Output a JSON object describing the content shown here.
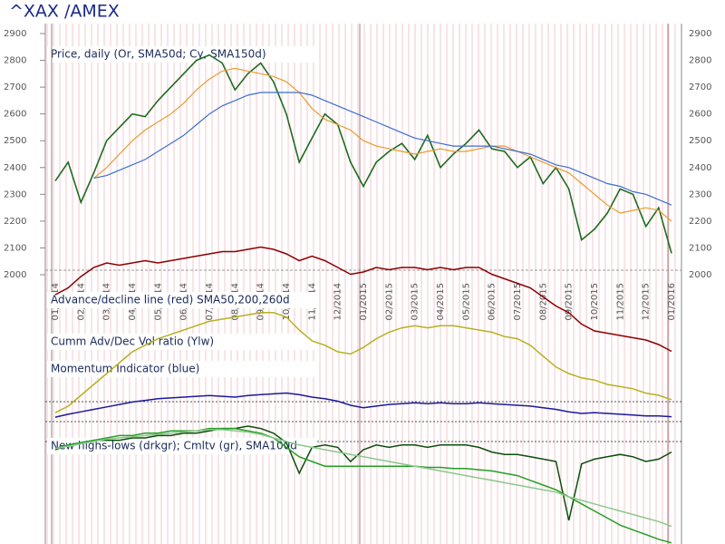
{
  "chart_data": {
    "type": "line",
    "title": "^XAX /AMEX",
    "price_label": "Price, daily (Or, SMA50d; Cy, SMA150d)",
    "categories": [
      "01/2014",
      null,
      "02/2014",
      null,
      "03/2014",
      null,
      "04/2014",
      null,
      "05/2014",
      null,
      "06/2014",
      null,
      "07/2014",
      null,
      "08/2014",
      null,
      "09/2014",
      null,
      "10/2014",
      null,
      "11/2014",
      null,
      "12/2014",
      null,
      "01/2015",
      null,
      "02/2015",
      null,
      "03/2015",
      null,
      "04/2015",
      null,
      "05/2015",
      null,
      "06/2015",
      null,
      "07/2015",
      null,
      "08/2015",
      null,
      "09/2015",
      null,
      "10/2015",
      null,
      "11/2015",
      null,
      "12/2015",
      null,
      "01/2016"
    ],
    "ylim": [
      2000,
      2900
    ],
    "yticks": [
      2000,
      2100,
      2200,
      2300,
      2400,
      2500,
      2600,
      2700,
      2800,
      2900
    ],
    "series": [
      {
        "color": "#1f6b1f",
        "values": [
          2350,
          2420,
          2270,
          2380,
          2500,
          2550,
          2600,
          2590,
          2650,
          2700,
          2750,
          2800,
          2820,
          2790,
          2690,
          2750,
          2790,
          2720,
          2600,
          2420,
          2510,
          2600,
          2560,
          2420,
          2330,
          2420,
          2460,
          2490,
          2430,
          2520,
          2400,
          2450,
          2490,
          2540,
          2470,
          2460,
          2400,
          2440,
          2340,
          2400,
          2320,
          2130,
          2170,
          2230,
          2320,
          2300,
          2180,
          2250,
          2080
        ]
      },
      {
        "color": "#e89a30",
        "values": [
          null,
          null,
          null,
          2360,
          2400,
          2450,
          2500,
          2540,
          2570,
          2600,
          2640,
          2690,
          2730,
          2760,
          2770,
          2760,
          2750,
          2740,
          2720,
          2680,
          2620,
          2580,
          2560,
          2540,
          2500,
          2480,
          2470,
          2460,
          2450,
          2460,
          2470,
          2460,
          2460,
          2470,
          2480,
          2480,
          2460,
          2440,
          2420,
          2400,
          2380,
          2340,
          2300,
          2260,
          2230,
          2240,
          2250,
          2240,
          2200
        ]
      },
      {
        "color": "#3a6fd0",
        "values": [
          null,
          null,
          null,
          2360,
          2370,
          2390,
          2410,
          2430,
          2460,
          2490,
          2520,
          2560,
          2600,
          2630,
          2650,
          2670,
          2680,
          2680,
          2680,
          2680,
          2670,
          2650,
          2630,
          2610,
          2590,
          2570,
          2550,
          2530,
          2510,
          2500,
          2490,
          2480,
          2480,
          2480,
          2480,
          2470,
          2460,
          2450,
          2430,
          2410,
          2400,
          2380,
          2360,
          2340,
          2330,
          2310,
          2300,
          2280,
          2260
        ]
      }
    ],
    "indicators": [
      {
        "label": "Advance/decline line (red) SMA50,200,260d",
        "ylim": [
          0,
          100
        ],
        "series": [
          {
            "color": "#8b0000",
            "values": [
              56,
              62,
              72,
              80,
              84,
              82,
              84,
              86,
              84,
              86,
              88,
              90,
              92,
              94,
              94,
              96,
              98,
              96,
              92,
              86,
              90,
              86,
              80,
              74,
              76,
              80,
              78,
              80,
              80,
              78,
              80,
              78,
              80,
              80,
              74,
              70,
              66,
              62,
              54,
              46,
              40,
              30,
              24,
              22,
              20,
              18,
              16,
              12,
              6
            ]
          }
        ]
      },
      {
        "label": "Cumm Adv/Dec Vol ratio (Ylw)",
        "ylim": [
          0,
          100
        ],
        "series": [
          {
            "color": "#b8b020",
            "values": [
              4,
              10,
              20,
              30,
              40,
              50,
              60,
              66,
              72,
              76,
              80,
              84,
              88,
              90,
              92,
              94,
              96,
              96,
              92,
              80,
              70,
              66,
              60,
              58,
              64,
              72,
              78,
              82,
              84,
              82,
              84,
              84,
              82,
              80,
              78,
              74,
              72,
              66,
              56,
              46,
              40,
              36,
              34,
              30,
              28,
              26,
              22,
              20,
              16
            ]
          }
        ]
      },
      {
        "label": "Momentum Indicator (blue)",
        "ylim": [
          0,
          100
        ],
        "series": [
          {
            "color": "#1a1a9a",
            "values": [
              11,
              18,
              24,
              30,
              36,
              42,
              48,
              52,
              56,
              58,
              60,
              62,
              64,
              62,
              60,
              64,
              66,
              68,
              70,
              66,
              60,
              56,
              50,
              40,
              34,
              38,
              42,
              44,
              46,
              44,
              46,
              44,
              44,
              46,
              44,
              42,
              40,
              38,
              34,
              30,
              24,
              20,
              22,
              20,
              18,
              16,
              14,
              14,
              12
            ]
          }
        ]
      },
      {
        "label": "New highs-lows (drkgr); Cmltv (gr), SMA100d",
        "ylim": [
          0,
          100
        ],
        "series": [
          {
            "color": "#0d4d0d",
            "values": [
              80,
              84,
              86,
              88,
              88,
              88,
              90,
              90,
              92,
              92,
              94,
              94,
              96,
              98,
              98,
              100,
              98,
              94,
              86,
              60,
              82,
              84,
              82,
              70,
              80,
              84,
              82,
              84,
              84,
              82,
              84,
              84,
              84,
              82,
              78,
              76,
              76,
              74,
              72,
              70,
              20,
              68,
              72,
              74,
              76,
              74,
              70,
              72,
              78
            ]
          },
          {
            "color": "#22a022",
            "values": [
              81,
              84,
              86,
              88,
              90,
              92,
              92,
              94,
              94,
              96,
              96,
              96,
              98,
              98,
              98,
              96,
              94,
              90,
              82,
              74,
              70,
              66,
              66,
              66,
              66,
              66,
              66,
              66,
              66,
              65,
              65,
              64,
              64,
              63,
              62,
              60,
              58,
              54,
              50,
              46,
              40,
              34,
              28,
              22,
              16,
              12,
              8,
              4,
              1
            ]
          },
          {
            "color": "#8cc88c",
            "values": [
              81,
              83,
              85,
              87,
              89,
              90,
              91,
              92,
              93,
              94,
              95,
              96,
              97,
              97,
              96,
              95,
              93,
              90,
              87,
              84,
              82,
              80,
              78,
              76,
              74,
              72,
              70,
              68,
              66,
              64,
              62,
              60,
              58,
              56,
              54,
              52,
              50,
              48,
              46,
              44,
              40,
              37,
              34,
              31,
              28,
              25,
              22,
              19,
              15
            ]
          }
        ]
      }
    ]
  }
}
